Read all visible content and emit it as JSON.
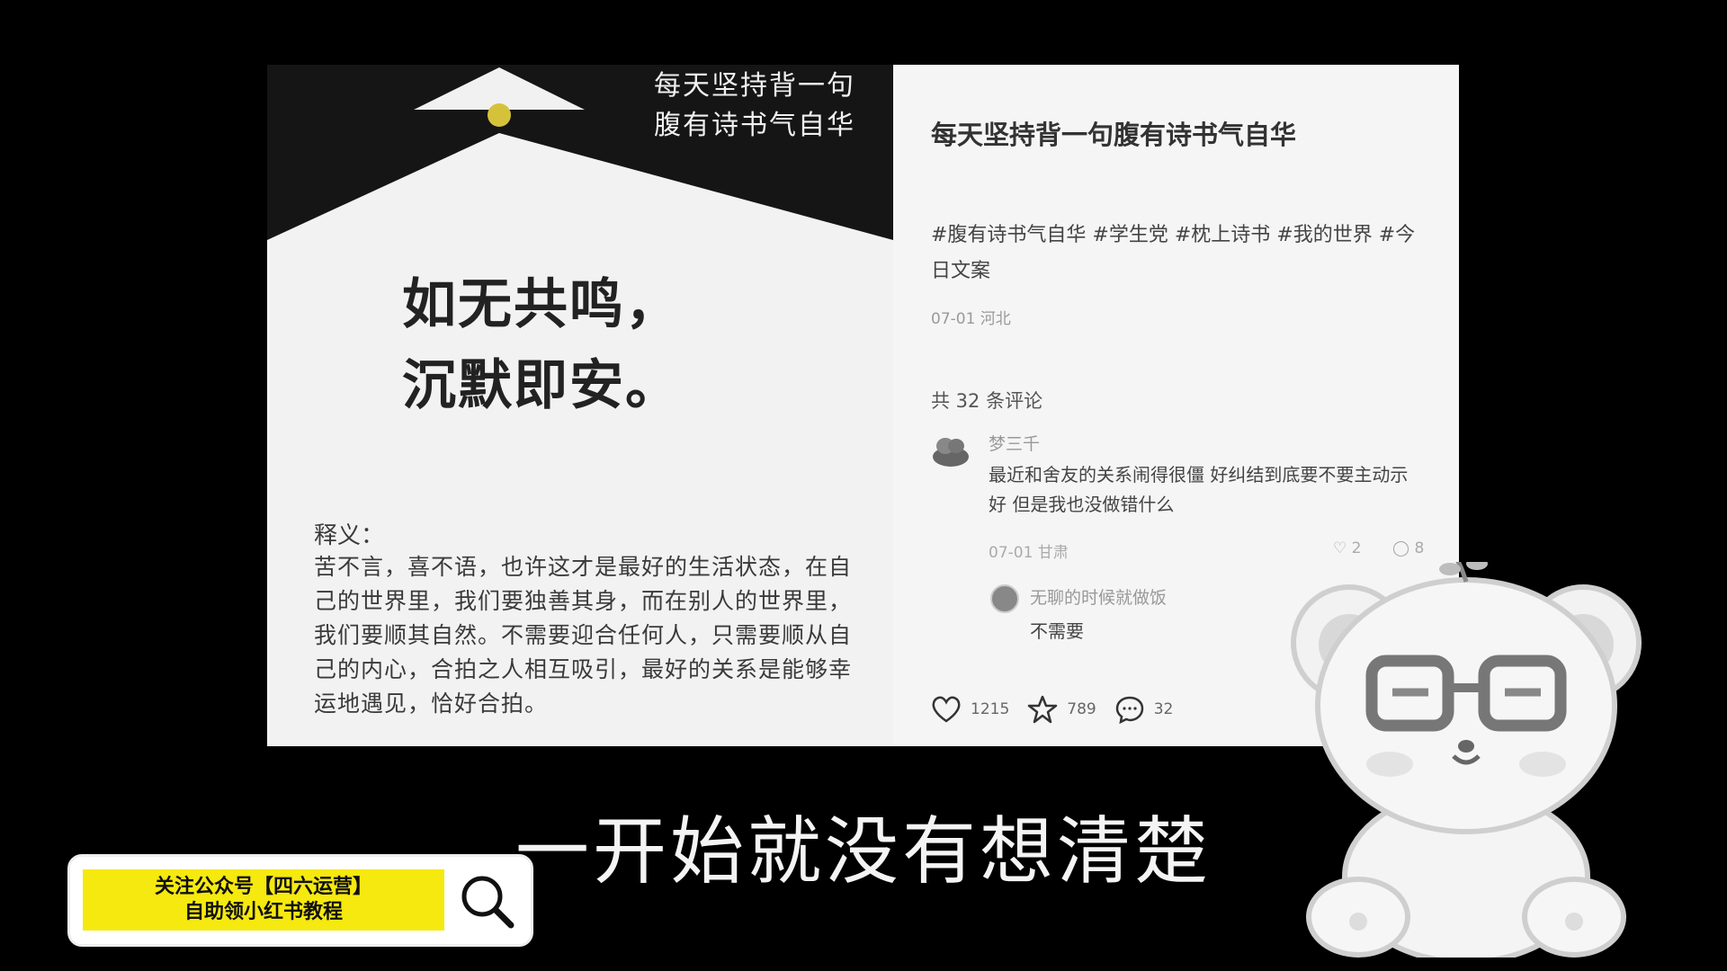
{
  "image_panel": {
    "top_line1": "每天坚持背一句",
    "top_line2": "腹有诗书气自华",
    "quote_line1": "如无共鸣，",
    "quote_line2": "沉默即安。",
    "meaning_title": "释义：",
    "meaning_body": "苦不言，喜不语，也许这才是最好的生活状态，在自己的世界里，我们要独善其身，而在别人的世界里，我们要顺其自然。不需要迎合任何人，只需要顺从自己的内心，合拍之人相互吸引，最好的关系是能够幸运地遇见，恰好合拍。"
  },
  "post": {
    "title": "每天坚持背一句腹有诗书气自华",
    "tags": "#腹有诗书气自华 #学生党 #枕上诗书 #我的世界 #今日文案",
    "meta": "07-01 河北",
    "comment_count": "共 32 条评论"
  },
  "comment": {
    "user": "梦三千",
    "text": "最近和舍友的关系闹得很僵 好纠结到底要不要主动示好 但是我也没做错什么",
    "meta": "07-01 甘肃",
    "likes": "2",
    "replies": "8"
  },
  "reply": {
    "user": "无聊的时候就做饭",
    "text": "不需要"
  },
  "actions": {
    "likes": "1215",
    "stars": "789",
    "comments": "32"
  },
  "subtitle": "一开始就没有想清楚",
  "banner": {
    "line1": "关注公众号【四六运营】",
    "line2": "自助领小红书教程"
  },
  "colors": {
    "banner_yellow": "#f6e90f",
    "background": "#000000"
  }
}
